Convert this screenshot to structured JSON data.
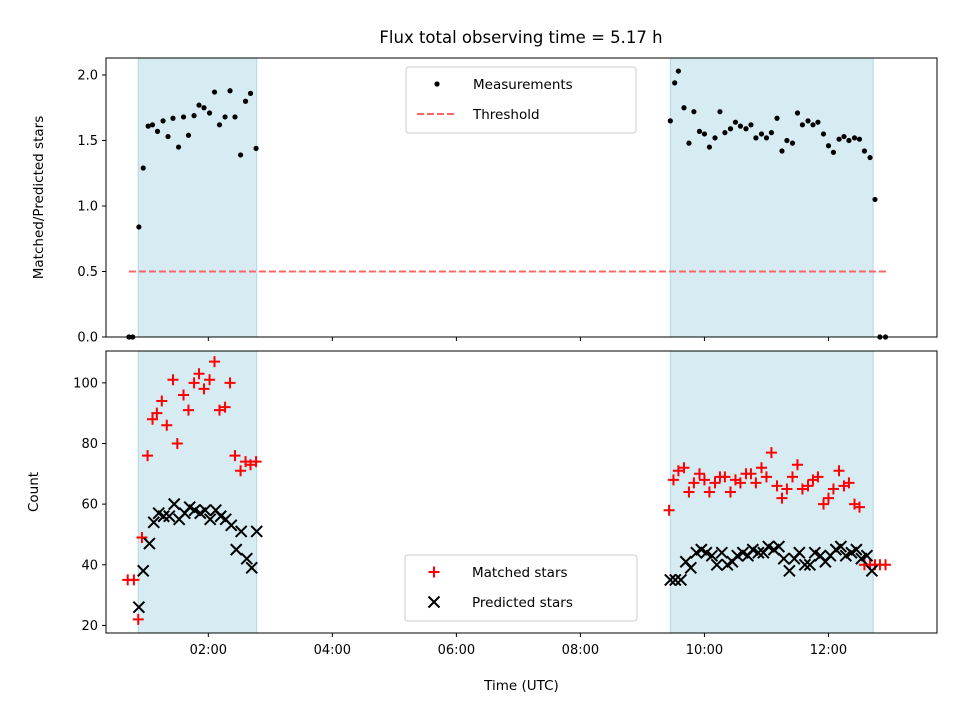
{
  "title": "Flux total observing time = 5.17 h",
  "colors": {
    "shade": "#add8e6",
    "threshold": "#ff6666",
    "matched": "#ff0000",
    "predicted": "#000000",
    "measure": "#000000"
  },
  "chart_data": [
    {
      "type": "scatter",
      "ylabel": "Matched/Predicted stars",
      "xlim": [
        0.35,
        13.75
      ],
      "ylim": [
        0,
        2.13
      ],
      "yticks": [
        0.0,
        0.5,
        1.0,
        1.5,
        2.0
      ],
      "ytick_labels": [
        "0.0",
        "0.5",
        "1.0",
        "1.5",
        "2.0"
      ],
      "xticks": [
        2,
        4,
        6,
        8,
        10,
        12
      ],
      "shaded_intervals": [
        [
          0.87,
          2.78
        ],
        [
          9.45,
          12.72
        ]
      ],
      "legend": {
        "placement": "top-center",
        "entries": [
          "Measurements",
          "Threshold"
        ]
      },
      "threshold": {
        "name": "Threshold",
        "y": 0.5,
        "x_range": [
          0.72,
          12.97
        ]
      },
      "series": [
        {
          "name": "Measurements",
          "x": [
            0.72,
            0.78,
            0.88,
            0.95,
            1.03,
            1.1,
            1.18,
            1.27,
            1.35,
            1.43,
            1.52,
            1.6,
            1.68,
            1.77,
            1.85,
            1.93,
            2.02,
            2.1,
            2.18,
            2.27,
            2.35,
            2.43,
            2.52,
            2.6,
            2.68,
            2.77,
            9.45,
            9.52,
            9.58,
            9.67,
            9.75,
            9.83,
            9.92,
            10.0,
            10.08,
            10.17,
            10.25,
            10.33,
            10.42,
            10.5,
            10.58,
            10.67,
            10.75,
            10.83,
            10.92,
            11.0,
            11.08,
            11.17,
            11.25,
            11.33,
            11.42,
            11.5,
            11.58,
            11.67,
            11.75,
            11.83,
            11.92,
            12.0,
            12.08,
            12.17,
            12.25,
            12.33,
            12.42,
            12.5,
            12.58,
            12.67,
            12.75,
            12.83,
            12.92
          ],
          "y": [
            0.0,
            0.0,
            0.84,
            1.29,
            1.61,
            1.62,
            1.57,
            1.65,
            1.53,
            1.67,
            1.45,
            1.68,
            1.54,
            1.69,
            1.77,
            1.75,
            1.71,
            1.87,
            1.62,
            1.68,
            1.88,
            1.68,
            1.39,
            1.8,
            1.86,
            1.44,
            1.65,
            1.94,
            2.03,
            1.75,
            1.48,
            1.72,
            1.57,
            1.55,
            1.45,
            1.52,
            1.72,
            1.56,
            1.59,
            1.64,
            1.61,
            1.59,
            1.62,
            1.52,
            1.55,
            1.52,
            1.56,
            1.67,
            1.42,
            1.5,
            1.48,
            1.71,
            1.62,
            1.65,
            1.62,
            1.64,
            1.55,
            1.46,
            1.41,
            1.51,
            1.53,
            1.5,
            1.52,
            1.51,
            1.42,
            1.37,
            1.05,
            0.0,
            0.0
          ]
        }
      ]
    },
    {
      "type": "scatter",
      "xlabel": "Time (UTC)",
      "ylabel": "Count",
      "xlim": [
        0.35,
        13.75
      ],
      "ylim": [
        17.5,
        110.5
      ],
      "yticks": [
        20,
        40,
        60,
        80,
        100
      ],
      "ytick_labels": [
        "20",
        "40",
        "60",
        "80",
        "100"
      ],
      "xticks": [
        2,
        4,
        6,
        8,
        10,
        12
      ],
      "xtick_labels": [
        "02:00",
        "04:00",
        "06:00",
        "08:00",
        "10:00",
        "12:00"
      ],
      "shaded_intervals": [
        [
          0.87,
          2.78
        ],
        [
          9.45,
          12.72
        ]
      ],
      "legend": {
        "placement": "bottom-center",
        "entries": [
          "Matched stars",
          "Predicted stars"
        ]
      },
      "series": [
        {
          "name": "Matched stars",
          "marker": "+",
          "x": [
            0.7,
            0.8,
            0.87,
            0.93,
            1.02,
            1.1,
            1.17,
            1.25,
            1.33,
            1.43,
            1.5,
            1.6,
            1.68,
            1.77,
            1.85,
            1.93,
            2.02,
            2.1,
            2.18,
            2.27,
            2.35,
            2.43,
            2.52,
            2.6,
            2.68,
            2.77,
            9.43,
            9.5,
            9.58,
            9.67,
            9.75,
            9.83,
            9.92,
            10.0,
            10.08,
            10.17,
            10.25,
            10.33,
            10.42,
            10.5,
            10.58,
            10.67,
            10.75,
            10.83,
            10.92,
            11.0,
            11.08,
            11.17,
            11.25,
            11.33,
            11.42,
            11.5,
            11.58,
            11.67,
            11.75,
            11.83,
            11.92,
            12.0,
            12.08,
            12.17,
            12.25,
            12.33,
            12.42,
            12.5,
            12.58,
            12.67,
            12.75,
            12.83,
            12.92
          ],
          "y": [
            35,
            35,
            22,
            49,
            76,
            88,
            90,
            94,
            86,
            101,
            80,
            96,
            91,
            100,
            103,
            98,
            101,
            107,
            91,
            92,
            100,
            76,
            71,
            74,
            73,
            74,
            58,
            68,
            71,
            72,
            64,
            67,
            70,
            68,
            64,
            67,
            69,
            69,
            64,
            68,
            67,
            70,
            70,
            67,
            72,
            69,
            77,
            66,
            62,
            65,
            69,
            73,
            65,
            66,
            68,
            69,
            60,
            62,
            65,
            71,
            66,
            67,
            60,
            59,
            40,
            40,
            40,
            40,
            40
          ]
        },
        {
          "name": "Predicted stars",
          "marker": "x",
          "x": [
            0.88,
            0.95,
            1.05,
            1.12,
            1.2,
            1.28,
            1.37,
            1.45,
            1.53,
            1.62,
            1.7,
            1.78,
            1.87,
            1.95,
            2.03,
            2.12,
            2.2,
            2.28,
            2.37,
            2.45,
            2.53,
            2.62,
            2.7,
            2.78,
            9.45,
            9.53,
            9.62,
            9.7,
            9.78,
            9.87,
            9.95,
            10.03,
            10.12,
            10.2,
            10.28,
            10.37,
            10.45,
            10.53,
            10.62,
            10.7,
            10.78,
            10.87,
            10.95,
            11.03,
            11.12,
            11.2,
            11.28,
            11.37,
            11.45,
            11.53,
            11.62,
            11.7,
            11.78,
            11.87,
            11.95,
            12.03,
            12.12,
            12.2,
            12.28,
            12.37,
            12.45,
            12.53,
            12.62,
            12.7
          ],
          "y": [
            26,
            38,
            47,
            54,
            57,
            56,
            56,
            60,
            55,
            57,
            59,
            58,
            57,
            58,
            55,
            58,
            56,
            55,
            53,
            45,
            51,
            42,
            39,
            51,
            35,
            35,
            35,
            41,
            39,
            44,
            45,
            44,
            43,
            40,
            44,
            40,
            41,
            43,
            44,
            43,
            45,
            44,
            44,
            46,
            45,
            46,
            42,
            38,
            42,
            44,
            40,
            40,
            44,
            43,
            41,
            43,
            45,
            46,
            43,
            44,
            45,
            42,
            43,
            38
          ]
        }
      ]
    }
  ]
}
